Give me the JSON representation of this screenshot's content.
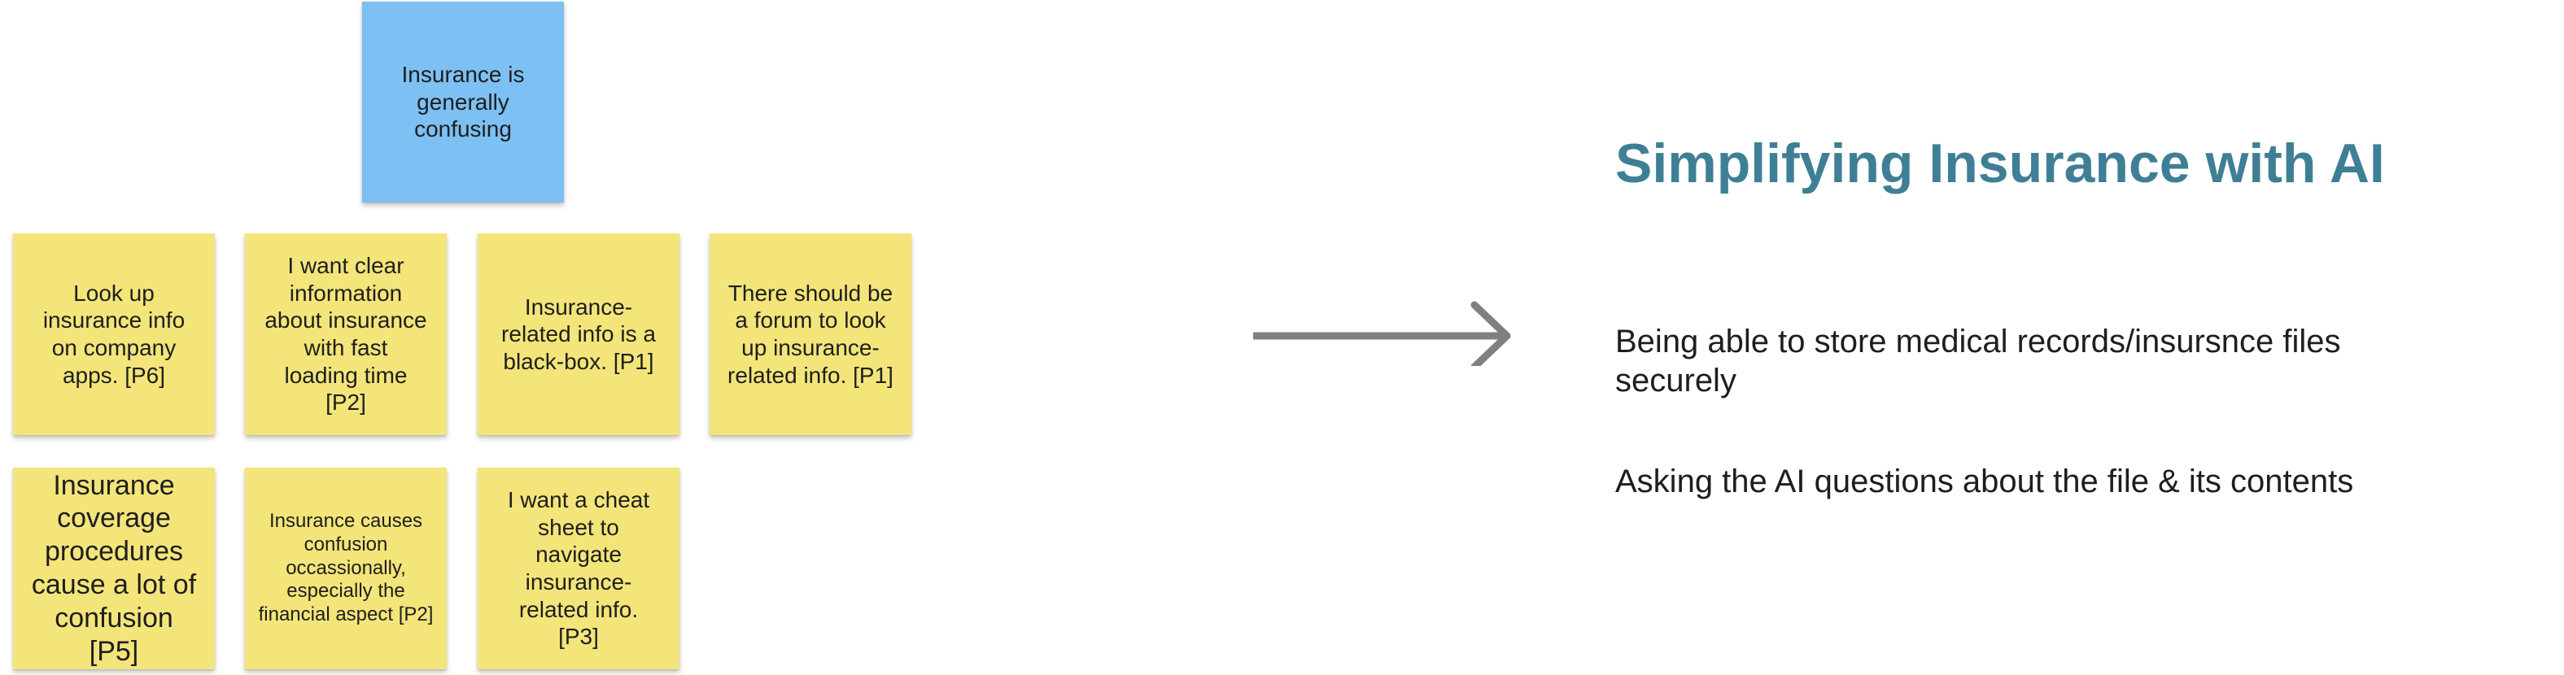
{
  "notes": {
    "root": "Insurance is generally confusing",
    "n1": "Look up insurance info on company apps. [P6]",
    "n2": "I want clear information about insurance with fast loading time [P2]",
    "n3": "Insurance-related info is a black-box. [P1]",
    "n4": "There should be a forum to look up insurance-related info. [P1]",
    "n5": "Insurance coverage procedures cause a lot of confusion [P5]",
    "n6": "Insurance causes confusion occassionally, especially the financial aspect [P2]",
    "n7": "I want a cheat sheet to navigate insurance-related info. [P3]"
  },
  "colors": {
    "note_yellow": "#f3e57a",
    "note_blue": "#7dc0f3",
    "arrow": "#808080",
    "title": "#3f7f95"
  },
  "icons": {
    "arrow": "right-arrow-icon"
  },
  "summary": {
    "title": "Simplifying Insurance with AI",
    "points": [
      "Being able to store medical records/insursnce files securely",
      "Asking the AI questions about the file & its contents"
    ]
  }
}
